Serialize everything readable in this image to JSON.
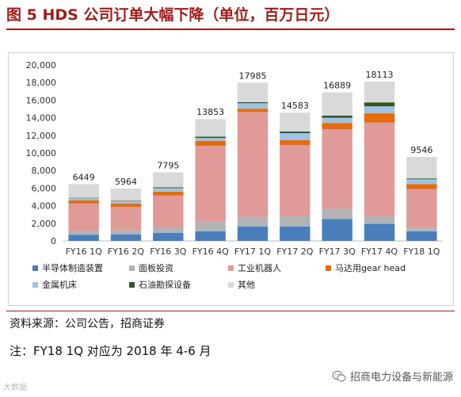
{
  "header": {
    "title": "图 5 HDS 公司订单大幅下降（单位，百万日元）"
  },
  "footer": {
    "source": "资料来源：公司公告，招商证券",
    "note": "注：FY18 1Q 对应为 2018 年 4-6 月",
    "watermark": "招商电力设备与新能源",
    "corner_logo": "大数据"
  },
  "chart_data": {
    "type": "bar",
    "stacked": true,
    "title": "",
    "xlabel": "",
    "ylabel": "",
    "ylim": [
      0,
      20000
    ],
    "yticks": [
      0,
      2000,
      4000,
      6000,
      8000,
      10000,
      12000,
      14000,
      16000,
      18000,
      20000
    ],
    "ytick_labels": [
      "0",
      "2,000",
      "4,000",
      "6,000",
      "8,000",
      "10,000",
      "12,000",
      "14,000",
      "16,000",
      "18,000",
      "20,000"
    ],
    "grid": false,
    "legend_position": "bottom",
    "categories": [
      "FY16 1Q",
      "FY16 2Q",
      "FY16 3Q",
      "FY16 4Q",
      "FY17 1Q",
      "FY17 2Q",
      "FY17 3Q",
      "FY17 4Q",
      "FY18 1Q"
    ],
    "totals": [
      6449,
      5964,
      7795,
      13853,
      17985,
      14583,
      16889,
      18113,
      9546
    ],
    "series": [
      {
        "name": "半导体制造装置",
        "color": "#4a7ebb",
        "values": [
          700,
          750,
          900,
          1100,
          1650,
          1650,
          2500,
          1950,
          1100
        ]
      },
      {
        "name": "面板投资",
        "color": "#b3b3b3",
        "values": [
          400,
          450,
          600,
          1050,
          1050,
          1150,
          1150,
          850,
          400
        ]
      },
      {
        "name": "工业机器人",
        "color": "#e09a98",
        "values": [
          3150,
          2650,
          3650,
          8650,
          11950,
          8100,
          9050,
          10650,
          4400
        ]
      },
      {
        "name": "马达用gear head",
        "color": "#e46c0a",
        "values": [
          350,
          400,
          450,
          550,
          350,
          550,
          700,
          1050,
          550
        ]
      },
      {
        "name": "金属机床",
        "color": "#9dc3e6",
        "values": [
          250,
          250,
          400,
          350,
          650,
          800,
          600,
          800,
          550
        ]
      },
      {
        "name": "石油勘探设备",
        "color": "#375623",
        "values": [
          50,
          50,
          100,
          150,
          130,
          180,
          250,
          450,
          100
        ]
      },
      {
        "name": "其他",
        "color": "#d9d9d9",
        "values": [
          1549,
          1414,
          1695,
          2003,
          2205,
          2153,
          2639,
          2363,
          2446
        ]
      }
    ]
  }
}
